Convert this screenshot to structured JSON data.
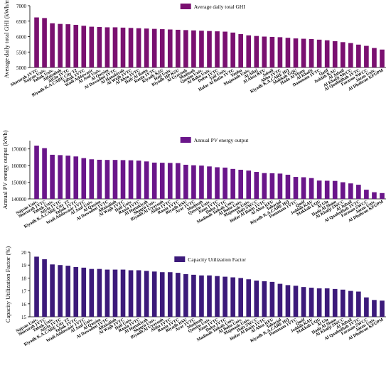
{
  "chart_data": [
    {
      "type": "bar",
      "legend": "Average daily total GHI",
      "ylabel": "Average daily total GHI (kWh/m²)",
      "ylim": [
        5000,
        7000
      ],
      "yticks": [
        5000,
        5500,
        6000,
        6500,
        7000
      ],
      "legend_position": "top-center",
      "color": "#7a1070",
      "categories": [
        "Sharurah 1VTC",
        "Najran Univ.",
        "Tabuk Univ.",
        "Alfaisaliah",
        "AlUla 1VTC",
        "Riyadh K.A.CARE City T2",
        "Tabuk 1VTC",
        "Wadi Addawasir",
        "Al Jouf Univ.",
        "Al Qassim",
        "Al Dawadmi 1VTC",
        "Al Hanakiyah",
        "Al Wajh 1VTC",
        "Al Ahsa 1VTC",
        "Hafr Al Batin",
        "Rania 1VTC",
        "Riyadh KSU",
        "Hail Univ.",
        "Riyadh HP KSU",
        "Al Uyaynah",
        "Madinah",
        "Qassim Univ.",
        "Al Baha Univ.",
        "Duba 1VTC",
        "Taif Univ.",
        "Hafar Al Batin 1VTC",
        "Yanbu",
        "Majmaah Univ.",
        "Al Aflaj",
        "Al Ahsa KFU",
        "Jubail",
        "Abha 1VTC",
        "Riyadh K.A.CARE HQ",
        "Makkah UQU",
        "Hada Al Sham",
        "Al Khafji",
        "Dammam 1VTC",
        "Qatif",
        "Jeddah KAU",
        "Al Jubail",
        "Al Khafji SWCC",
        "Al Qunfudhah 1VTC",
        "Farasan SWCC",
        "Jazan Univ.",
        "Al Dhahran KFUPM"
      ],
      "values": [
        6620,
        6600,
        6430,
        6410,
        6400,
        6380,
        6350,
        6320,
        6310,
        6300,
        6300,
        6290,
        6280,
        6270,
        6260,
        6250,
        6240,
        6230,
        6220,
        6210,
        6200,
        6190,
        6180,
        6170,
        6160,
        6130,
        6080,
        6040,
        6020,
        6000,
        5990,
        5980,
        5960,
        5940,
        5930,
        5920,
        5900,
        5880,
        5850,
        5820,
        5790,
        5740,
        5700,
        5630,
        5580
      ]
    },
    {
      "type": "bar",
      "legend": "Annual PV energy output",
      "ylabel": "Annual PV energy output (kWh)",
      "ylim": [
        140000,
        175000
      ],
      "yticks": [
        140000,
        150000,
        160000,
        170000
      ],
      "legend_position": "top-center",
      "color": "#6a168a",
      "categories": [
        "Najran Univ.",
        "Sharurah 1VTC",
        "Tabuk Univ.",
        "AlUla 1VTC",
        "Riyadh K.A.CARE City T2",
        "Tabuk 1VTC",
        "Wadi Addawasir 1VTC",
        "Al Jouf Univ.",
        "Al Qassim",
        "Al Dawadmi 1VTC",
        "Alfaisaliah",
        "Al Wajh 1VTC",
        "Hail Univ.",
        "Rania 1VTC",
        "Al Hanakiyah",
        "Shaqra Univ.",
        "Riyadh Al Uyaynah",
        "Abha 1VTC",
        "Rania 1VTC",
        "Riyadh KSU",
        "Arar 1VTC",
        "Madinah",
        "Qassim Univ.",
        "Jizan 1VTC",
        "Duba 1VTC",
        "Madinah Taibah Univ.",
        "Al Baha Univ.",
        "Majmaah Univ.",
        "Hafr SWCC",
        "Hafar Al Batin 1VTC",
        "Al Ahsa KFU",
        "Tabarjal",
        "Riyadh K.A.CARE HQ",
        "Dammam 1VTC",
        "Qatif",
        "Jeddah KAU",
        "Makkah UQU",
        "Al Ula",
        "Hada Al Sham",
        "Al Khafji SWCC",
        "Al Jubail",
        "Al Qunfudhah 1VTC",
        "Farasan SWCC",
        "Jazan Univ.",
        "Al Dhahran KFUPM"
      ],
      "values": [
        172000,
        170500,
        166500,
        166300,
        166000,
        165500,
        164500,
        163800,
        163500,
        163400,
        163400,
        163300,
        163200,
        163000,
        162500,
        161800,
        161700,
        161600,
        161500,
        160500,
        160200,
        160000,
        159500,
        159000,
        158800,
        158000,
        157500,
        157000,
        156200,
        155500,
        155400,
        155200,
        154500,
        153200,
        153000,
        152500,
        151000,
        150900,
        150800,
        150000,
        149300,
        148500,
        145500,
        144000,
        143500
      ]
    },
    {
      "type": "bar",
      "legend": "Capacity Utilization Factor",
      "ylabel": "Capacity Utilization Factor (%)",
      "ylim": [
        15,
        20
      ],
      "yticks": [
        15,
        16,
        17,
        18,
        19,
        20
      ],
      "legend_position": "top-center",
      "color": "#3c1a7a",
      "categories": [
        "Najran Univ.",
        "Sharurah 1VTC",
        "Tabuk Univ.",
        "AlUla 1VTC",
        "Riyadh K.A.CARE City T2",
        "Tabuk 1VTC",
        "Wadi Addawasir 1VTC",
        "Al Jouf Univ.",
        "Al Qassim",
        "Al Dawadmi 1VTC",
        "Alfaisaliah",
        "Al Wajh 1VTC",
        "Hail Univ.",
        "Rania 1VTC",
        "Al Hanakiyah",
        "Shaqra Univ.",
        "Riyadh Al Uyaynah",
        "Abha 1VTC",
        "Rania 1VTC",
        "Riyadh KSU",
        "Arar 1VTC",
        "Madinah",
        "Qassim Univ.",
        "Jizan 1VTC",
        "Duba 1VTC",
        "Madinah Taibah Univ.",
        "Al Baha Univ.",
        "Majmaah Univ.",
        "Hafr SWCC",
        "Hafar Al Batin 1VTC",
        "Al Ahsa KFU",
        "Tabarjal",
        "Riyadh K.A.CARE HQ",
        "Dammam 1VTC",
        "Qatif",
        "Jeddah KAU",
        "Makkah UQU",
        "Al Ula",
        "Hada Al Sham",
        "Al Khafji SWCC",
        "Al Jubail",
        "Al Qunfudhah 1VTC",
        "Farasan SWCC",
        "Jazan Univ.",
        "Al Dhahran KFUPM"
      ],
      "values": [
        19.65,
        19.45,
        19.05,
        19.0,
        18.95,
        18.85,
        18.8,
        18.7,
        18.7,
        18.65,
        18.65,
        18.65,
        18.6,
        18.6,
        18.55,
        18.5,
        18.45,
        18.45,
        18.4,
        18.3,
        18.25,
        18.2,
        18.2,
        18.15,
        18.1,
        18.05,
        18.0,
        17.9,
        17.8,
        17.75,
        17.7,
        17.55,
        17.45,
        17.4,
        17.3,
        17.25,
        17.2,
        17.2,
        17.15,
        17.1,
        17.0,
        16.95,
        16.5,
        16.3,
        16.25
      ]
    }
  ]
}
